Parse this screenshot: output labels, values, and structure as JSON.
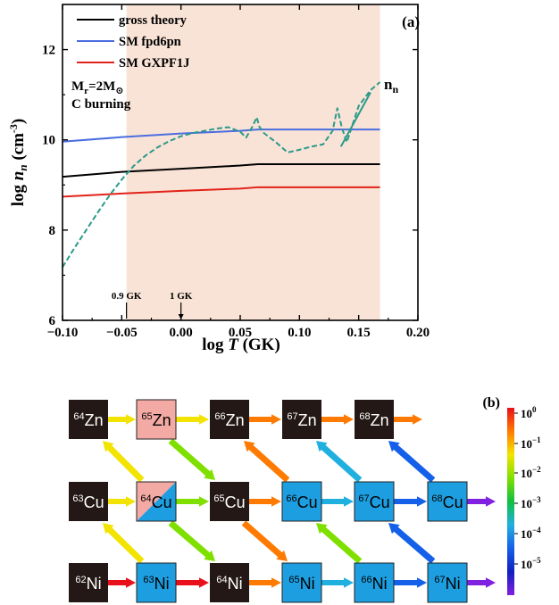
{
  "chart_data": [
    {
      "type": "line",
      "panel_label": "(a)",
      "xlabel_main": "log ",
      "xlabel_var": "T",
      "xlabel_unit": " (GK)",
      "ylabel_main": "log ",
      "ylabel_var": "n",
      "ylabel_sub": "n",
      "ylabel_unit": " (cm",
      "ylabel_exp": "-3",
      "ylabel_close": ")",
      "xlim": [
        -0.1,
        0.2
      ],
      "ylim": [
        6,
        13
      ],
      "x_ticks": [
        "−0.10",
        "−0.05",
        "0.00",
        "0.05",
        "0.10",
        "0.15",
        "0.20"
      ],
      "x_tick_values": [
        -0.1,
        -0.05,
        0.0,
        0.05,
        0.1,
        0.15,
        0.2
      ],
      "y_ticks": [
        "6",
        "8",
        "10",
        "12"
      ],
      "y_tick_values": [
        6,
        8,
        10,
        12
      ],
      "shaded_region": {
        "x_start": -0.046,
        "x_end": 0.168,
        "color": "#f9e3d6"
      },
      "annotations": {
        "mass_main": "M",
        "mass_sub": "r",
        "mass_rest": "=2M",
        "mass_symbol": "⊙",
        "burning": "C burning",
        "nn_main": "n",
        "nn_sub": "n",
        "marker_09": "0.9 GK",
        "marker_09_x": -0.046,
        "marker_1": "1 GK",
        "marker_1_x": 0.0
      },
      "series": [
        {
          "name": "gross theory",
          "color": "#000000",
          "style": "solid",
          "x": [
            -0.1,
            -0.05,
            0.0,
            0.05,
            0.065,
            0.1,
            0.15,
            0.168
          ],
          "y": [
            9.18,
            9.29,
            9.36,
            9.43,
            9.46,
            9.46,
            9.46,
            9.46
          ]
        },
        {
          "name": "SM fpd6pn",
          "color": "#4a6ee0",
          "style": "solid",
          "x": [
            -0.1,
            -0.05,
            0.0,
            0.05,
            0.065,
            0.1,
            0.15,
            0.168
          ],
          "y": [
            9.96,
            10.06,
            10.14,
            10.2,
            10.23,
            10.23,
            10.23,
            10.23
          ]
        },
        {
          "name": "SM GXPF1J",
          "color": "#e2231a",
          "style": "solid",
          "x": [
            -0.1,
            -0.05,
            0.0,
            0.05,
            0.065,
            0.1,
            0.15,
            0.168
          ],
          "y": [
            8.74,
            8.81,
            8.87,
            8.92,
            8.95,
            8.95,
            8.95,
            8.95
          ]
        },
        {
          "name": "",
          "color": "#2a9a8a",
          "style": "dashed",
          "x": [
            -0.1,
            -0.09,
            -0.08,
            -0.07,
            -0.06,
            -0.05,
            -0.04,
            -0.03,
            -0.02,
            -0.01,
            0.0,
            0.01,
            0.02,
            0.03,
            0.04,
            0.05,
            0.055,
            0.06,
            0.064,
            0.066,
            0.07,
            0.08,
            0.09,
            0.1,
            0.11,
            0.12,
            0.128,
            0.132,
            0.136,
            0.14,
            0.145,
            0.15,
            0.16,
            0.168
          ],
          "y": [
            7.18,
            7.6,
            8.0,
            8.4,
            8.78,
            9.12,
            9.42,
            9.65,
            9.83,
            9.97,
            10.08,
            10.15,
            10.2,
            10.25,
            10.28,
            10.18,
            10.05,
            10.28,
            10.5,
            10.3,
            10.15,
            9.95,
            9.72,
            9.78,
            9.85,
            9.9,
            10.2,
            10.7,
            10.25,
            9.95,
            10.35,
            10.75,
            11.1,
            11.28
          ]
        },
        {
          "name": "",
          "color": "#2a9a8a",
          "style": "solid",
          "x": [
            0.135,
            0.16
          ],
          "y": [
            9.85,
            11.05
          ]
        }
      ]
    },
    {
      "type": "diagram",
      "panel_label": "(b)",
      "colorbar_labels": [
        {
          "base": "10",
          "exp": "0"
        },
        {
          "base": "10",
          "exp": "−1"
        },
        {
          "base": "10",
          "exp": "−2"
        },
        {
          "base": "10",
          "exp": "−3"
        },
        {
          "base": "10",
          "exp": "−4"
        },
        {
          "base": "10",
          "exp": "−5"
        }
      ],
      "colorbar_colors": [
        "#e8101a",
        "#ff7a00",
        "#f2e400",
        "#7fe000",
        "#10c040",
        "#20b0e0",
        "#1560e8",
        "#1020c0",
        "#8020e0"
      ],
      "nuclei": [
        {
          "mass": "64",
          "el": "Zn",
          "style": "black"
        },
        {
          "mass": "65",
          "el": "Zn",
          "style": "pink"
        },
        {
          "mass": "66",
          "el": "Zn",
          "style": "black"
        },
        {
          "mass": "67",
          "el": "Zn",
          "style": "black"
        },
        {
          "mass": "68",
          "el": "Zn",
          "style": "black"
        },
        {
          "mass": "63",
          "el": "Cu",
          "style": "black"
        },
        {
          "mass": "64",
          "el": "Cu",
          "style": "split"
        },
        {
          "mass": "65",
          "el": "Cu",
          "style": "black"
        },
        {
          "mass": "66",
          "el": "Cu",
          "style": "blue"
        },
        {
          "mass": "67",
          "el": "Cu",
          "style": "blue"
        },
        {
          "mass": "68",
          "el": "Cu",
          "style": "blue"
        },
        {
          "mass": "62",
          "el": "Ni",
          "style": "black"
        },
        {
          "mass": "63",
          "el": "Ni",
          "style": "blue"
        },
        {
          "mass": "64",
          "el": "Ni",
          "style": "black"
        },
        {
          "mass": "65",
          "el": "Ni",
          "style": "blue"
        },
        {
          "mass": "66",
          "el": "Ni",
          "style": "blue"
        },
        {
          "mass": "67",
          "el": "Ni",
          "style": "blue"
        }
      ],
      "colors": {
        "black": "#231815",
        "pink": "#f4aaa4",
        "blue": "#1d9ee0"
      }
    }
  ]
}
